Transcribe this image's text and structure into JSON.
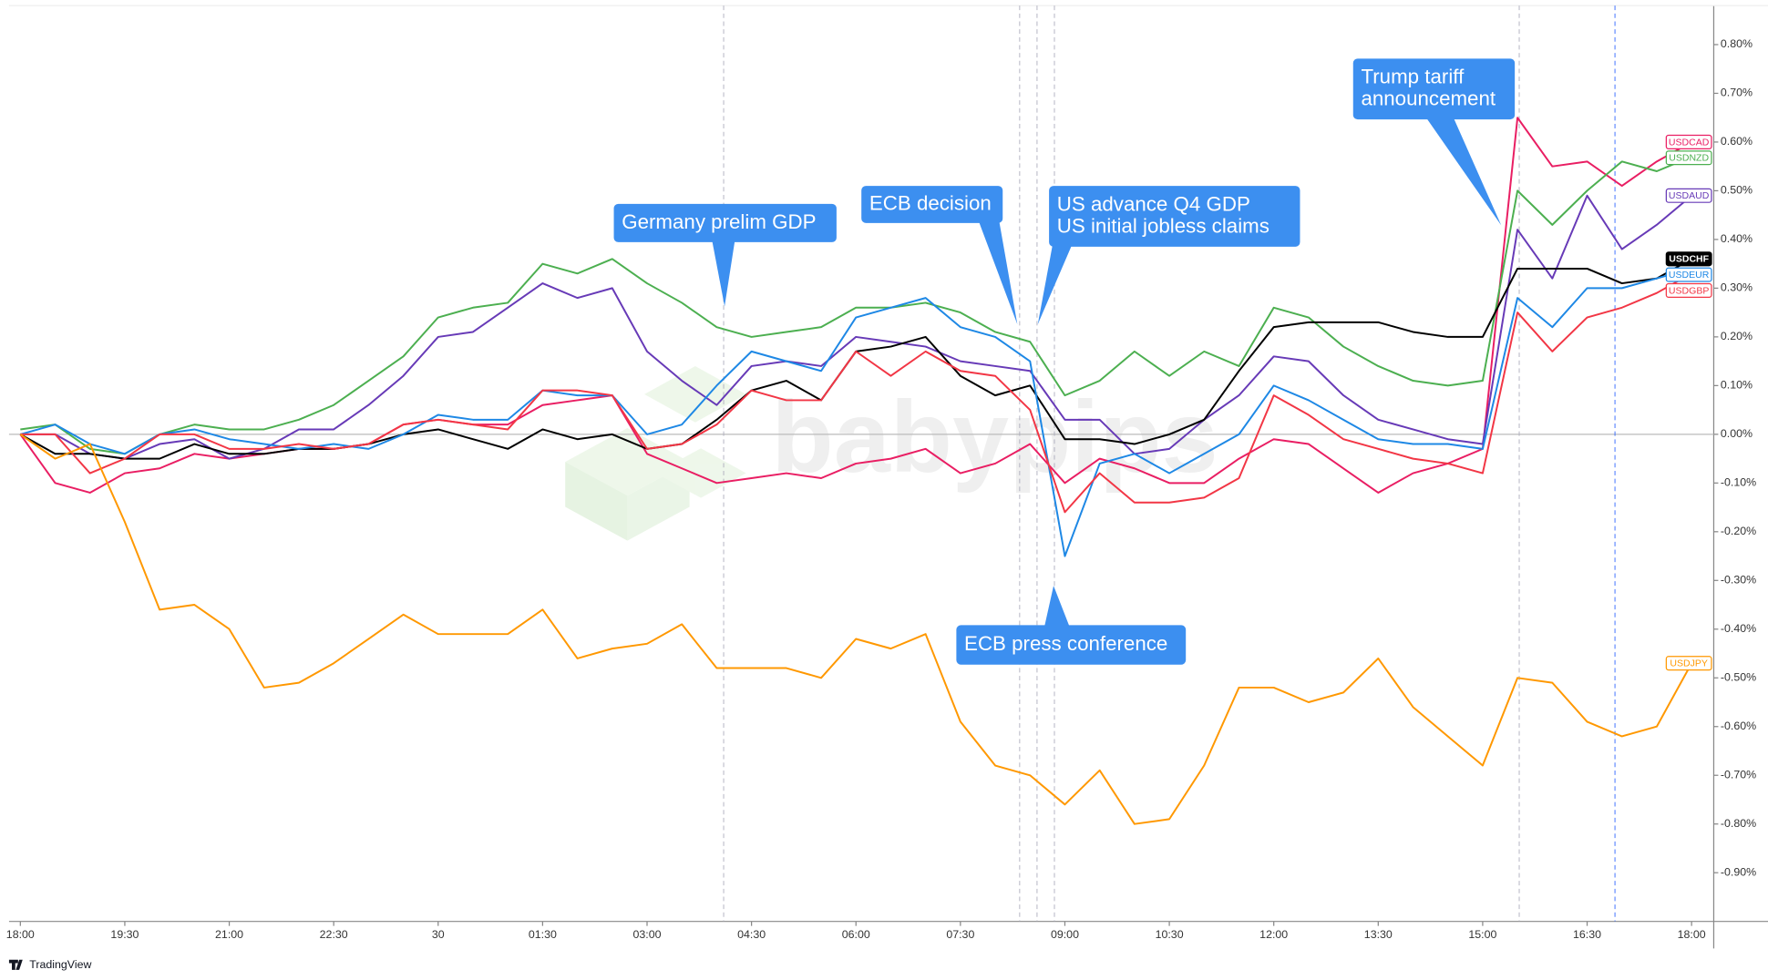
{
  "chart_data": {
    "type": "line",
    "categories": [
      "18:00",
      null,
      null,
      "19:30",
      null,
      null,
      "21:00",
      null,
      null,
      "22:30",
      null,
      null,
      "30",
      null,
      null,
      "01:30",
      null,
      null,
      "03:00",
      null,
      null,
      "04:30",
      null,
      null,
      "06:00",
      null,
      null,
      "07:30",
      null,
      null,
      "09:00",
      null,
      null,
      "10:30",
      null,
      null,
      "12:00",
      null,
      null,
      "13:30",
      null,
      null,
      "15:00",
      null,
      null,
      "16:30",
      null,
      null,
      "18:00"
    ],
    "series": [
      {
        "name": "USDCAD",
        "color": "#e91e63",
        "values": [
          0,
          -0.1,
          -0.12,
          -0.08,
          -0.07,
          -0.04,
          -0.05,
          -0.04,
          -0.03,
          -0.03,
          -0.02,
          0.02,
          0.03,
          0.02,
          0.02,
          0.06,
          0.07,
          0.08,
          -0.04,
          -0.07,
          -0.1,
          -0.09,
          -0.08,
          -0.09,
          -0.06,
          -0.05,
          -0.03,
          -0.08,
          -0.06,
          -0.02,
          -0.1,
          -0.05,
          -0.07,
          -0.1,
          -0.1,
          -0.05,
          -0.01,
          -0.02,
          -0.07,
          -0.12,
          -0.08,
          -0.06,
          -0.03,
          0.65,
          0.55,
          0.56,
          0.51,
          0.56,
          0.6
        ]
      },
      {
        "name": "USDNZD",
        "color": "#4caf50",
        "values": [
          0.01,
          0.02,
          -0.03,
          -0.04,
          0.0,
          0.02,
          0.01,
          0.01,
          0.03,
          0.06,
          0.11,
          0.16,
          0.24,
          0.26,
          0.27,
          0.35,
          0.33,
          0.36,
          0.31,
          0.27,
          0.22,
          0.2,
          0.21,
          0.22,
          0.26,
          0.26,
          0.27,
          0.25,
          0.21,
          0.19,
          0.08,
          0.11,
          0.17,
          0.12,
          0.17,
          0.14,
          0.26,
          0.24,
          0.18,
          0.14,
          0.11,
          0.1,
          0.11,
          0.5,
          0.43,
          0.5,
          0.56,
          0.54,
          0.57
        ]
      },
      {
        "name": "USDAUD",
        "color": "#673ab7",
        "values": [
          0,
          0.0,
          -0.04,
          -0.05,
          -0.02,
          -0.01,
          -0.05,
          -0.03,
          0.01,
          0.01,
          0.06,
          0.12,
          0.2,
          0.21,
          0.26,
          0.31,
          0.28,
          0.3,
          0.17,
          0.11,
          0.06,
          0.14,
          0.15,
          0.14,
          0.2,
          0.19,
          0.18,
          0.15,
          0.14,
          0.13,
          0.03,
          0.03,
          -0.04,
          -0.03,
          0.03,
          0.08,
          0.16,
          0.15,
          0.08,
          0.03,
          0.01,
          -0.01,
          -0.02,
          0.42,
          0.32,
          0.49,
          0.38,
          0.43,
          0.49
        ]
      },
      {
        "name": "USDCHF",
        "color": "#000000",
        "values": [
          0,
          -0.04,
          -0.04,
          -0.05,
          -0.05,
          -0.02,
          -0.04,
          -0.04,
          -0.03,
          -0.03,
          -0.02,
          0.0,
          0.01,
          -0.01,
          -0.03,
          0.01,
          -0.01,
          0.0,
          -0.03,
          -0.02,
          0.03,
          0.09,
          0.11,
          0.07,
          0.17,
          0.18,
          0.2,
          0.12,
          0.08,
          0.1,
          -0.01,
          -0.01,
          -0.02,
          0.0,
          0.03,
          0.13,
          0.22,
          0.23,
          0.23,
          0.23,
          0.21,
          0.2,
          0.2,
          0.34,
          0.34,
          0.34,
          0.31,
          0.32,
          0.36
        ]
      },
      {
        "name": "USDEUR",
        "color": "#1e88e5",
        "values": [
          0,
          0.02,
          -0.02,
          -0.04,
          0.0,
          0.01,
          -0.01,
          -0.02,
          -0.03,
          -0.02,
          -0.03,
          0.0,
          0.04,
          0.03,
          0.03,
          0.09,
          0.08,
          0.08,
          0.0,
          0.02,
          0.1,
          0.17,
          0.15,
          0.13,
          0.24,
          0.26,
          0.28,
          0.22,
          0.2,
          0.15,
          -0.25,
          -0.06,
          -0.04,
          -0.08,
          -0.04,
          0.0,
          0.1,
          0.07,
          0.03,
          -0.01,
          -0.02,
          -0.02,
          -0.03,
          0.28,
          0.22,
          0.3,
          0.3,
          0.32,
          0.34
        ]
      },
      {
        "name": "USDGBP",
        "color": "#f23645",
        "values": [
          0,
          0.0,
          -0.08,
          -0.05,
          0.0,
          0.0,
          -0.03,
          -0.03,
          -0.02,
          -0.03,
          -0.02,
          0.02,
          0.03,
          0.02,
          0.01,
          0.09,
          0.09,
          0.08,
          -0.03,
          -0.02,
          0.02,
          0.09,
          0.07,
          0.07,
          0.17,
          0.12,
          0.17,
          0.13,
          0.12,
          0.05,
          -0.16,
          -0.08,
          -0.14,
          -0.14,
          -0.13,
          -0.09,
          0.08,
          0.04,
          -0.01,
          -0.03,
          -0.05,
          -0.06,
          -0.08,
          0.25,
          0.17,
          0.24,
          0.26,
          0.29,
          0.33
        ]
      },
      {
        "name": "USDJPY",
        "color": "#ff9800",
        "values": [
          0,
          -0.05,
          -0.02,
          -0.18,
          -0.36,
          -0.35,
          -0.4,
          -0.52,
          -0.51,
          -0.47,
          -0.42,
          -0.37,
          -0.41,
          -0.41,
          -0.41,
          -0.36,
          -0.46,
          -0.44,
          -0.43,
          -0.39,
          -0.48,
          -0.48,
          -0.48,
          -0.5,
          -0.42,
          -0.44,
          -0.41,
          -0.59,
          -0.68,
          -0.7,
          -0.76,
          -0.69,
          -0.8,
          -0.79,
          -0.68,
          -0.52,
          -0.52,
          -0.55,
          -0.53,
          -0.46,
          -0.56,
          -0.62,
          -0.68,
          -0.5,
          -0.51,
          -0.59,
          -0.62,
          -0.6,
          -0.47
        ]
      }
    ],
    "ylim": [
      -1.0,
      0.88
    ],
    "yticks": [
      {
        "value": 0.8,
        "label": "0.80%"
      },
      {
        "value": 0.7,
        "label": "0.70%"
      },
      {
        "value": 0.6,
        "label": "0.60%"
      },
      {
        "value": 0.5,
        "label": "0.50%"
      },
      {
        "value": 0.4,
        "label": "0.40%"
      },
      {
        "value": 0.3,
        "label": "0.30%"
      },
      {
        "value": 0.2,
        "label": "0.20%"
      },
      {
        "value": 0.1,
        "label": "0.10%"
      },
      {
        "value": 0,
        "label": "0.00%"
      },
      {
        "value": -0.1,
        "label": "-0.10%"
      },
      {
        "value": -0.2,
        "label": "-0.20%"
      },
      {
        "value": -0.3,
        "label": "-0.30%"
      },
      {
        "value": -0.4,
        "label": "-0.40%"
      },
      {
        "value": -0.5,
        "label": "-0.50%"
      },
      {
        "value": -0.6,
        "label": "-0.60%"
      },
      {
        "value": -0.7,
        "label": "-0.70%"
      },
      {
        "value": -0.8,
        "label": "-0.80%"
      },
      {
        "value": -0.9,
        "label": "-0.90%"
      }
    ],
    "annotations": [
      {
        "text": [
          "Germany prelim GDP"
        ]
      },
      {
        "text": [
          "ECB decision"
        ]
      },
      {
        "text": [
          "US advance Q4 GDP",
          "US initial jobless claims"
        ]
      },
      {
        "text": [
          "ECB press conference"
        ]
      },
      {
        "text": [
          "Trump tariff",
          "announcement"
        ]
      }
    ],
    "watermark": "babypips",
    "branding": "TradingView"
  }
}
